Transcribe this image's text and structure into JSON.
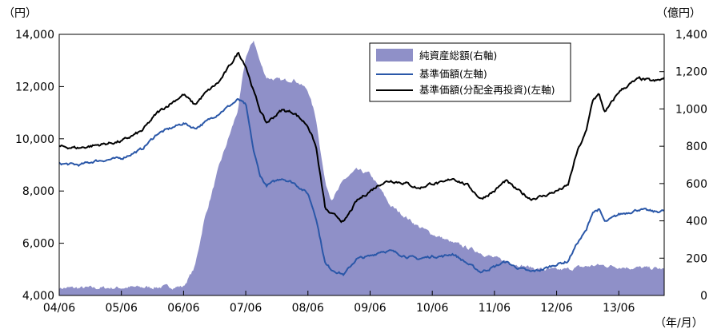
{
  "chart_data": {
    "type": "line",
    "units": {
      "left": "（円）",
      "right": "（億円）",
      "x": "（年/月）"
    },
    "left_axis": {
      "ylim": [
        4000,
        14000
      ],
      "ticks": [
        4000,
        6000,
        8000,
        10000,
        12000,
        14000
      ],
      "tick_labels": [
        "4,000",
        "6,000",
        "8,000",
        "10,000",
        "12,000",
        "14,000"
      ]
    },
    "right_axis": {
      "ylim": [
        0,
        1400
      ],
      "ticks": [
        0,
        200,
        400,
        600,
        800,
        1000,
        1200,
        1400
      ],
      "tick_labels": [
        "0",
        "200",
        "400",
        "600",
        "800",
        "1,000",
        "1,200",
        "1,400"
      ]
    },
    "categories": [
      "04/06",
      "05/06",
      "06/06",
      "07/06",
      "08/06",
      "09/06",
      "10/06",
      "11/06",
      "12/06",
      "13/06"
    ],
    "x": [
      2004.42,
      2004.75,
      2005.0,
      2005.42,
      2005.75,
      2006.0,
      2006.42,
      2006.6,
      2006.75,
      2007.0,
      2007.3,
      2007.42,
      2007.55,
      2007.65,
      2007.75,
      2008.0,
      2008.2,
      2008.42,
      2008.55,
      2008.7,
      2008.8,
      2008.9,
      2009.0,
      2009.2,
      2009.42,
      2009.6,
      2009.75,
      2010.0,
      2010.2,
      2010.42,
      2010.6,
      2010.75,
      2011.0,
      2011.2,
      2011.42,
      2011.6,
      2011.75,
      2012.0,
      2012.2,
      2012.42,
      2012.6,
      2012.75,
      2012.9,
      2013.0,
      2013.1,
      2013.2,
      2013.42,
      2013.6,
      2013.75,
      2014.0,
      2014.15
    ],
    "series": [
      {
        "name": "純資産総額(右軸)",
        "axis": "right",
        "color": "#8f90c8",
        "style": "area",
        "values": [
          40,
          40,
          40,
          42,
          44,
          45,
          48,
          150,
          400,
          700,
          1000,
          1280,
          1370,
          1250,
          1170,
          1150,
          1160,
          1100,
          950,
          600,
          520,
          560,
          620,
          670,
          650,
          560,
          480,
          420,
          370,
          330,
          305,
          280,
          255,
          230,
          200,
          185,
          170,
          150,
          140,
          135,
          140,
          150,
          155,
          160,
          162,
          160,
          155,
          150,
          148,
          145,
          140
        ]
      },
      {
        "name": "基準価額(左軸)",
        "axis": "left",
        "color": "#2a57a8",
        "style": "line",
        "values": [
          9050,
          9000,
          9150,
          9250,
          9600,
          10200,
          10600,
          10400,
          10600,
          11000,
          11500,
          11300,
          9500,
          8600,
          8200,
          8500,
          8300,
          7900,
          7000,
          5200,
          5000,
          4900,
          4800,
          5400,
          5500,
          5700,
          5700,
          5500,
          5400,
          5500,
          5500,
          5600,
          5200,
          4900,
          5100,
          5300,
          5100,
          4900,
          5000,
          5200,
          5300,
          6000,
          6500,
          7200,
          7300,
          6800,
          7100,
          7200,
          7300,
          7200,
          7250
        ]
      },
      {
        "name": "基準価額(分配金再投資)(左軸)",
        "axis": "left",
        "color": "#000000",
        "style": "line",
        "values": [
          9700,
          9650,
          9750,
          9900,
          10300,
          11000,
          11700,
          11300,
          11700,
          12200,
          13300,
          12800,
          11800,
          11100,
          10600,
          11100,
          11000,
          10500,
          9700,
          7300,
          7100,
          7000,
          6800,
          7600,
          8000,
          8300,
          8400,
          8300,
          8100,
          8300,
          8300,
          8500,
          8200,
          7700,
          8000,
          8400,
          8100,
          7700,
          7800,
          8000,
          8200,
          9500,
          10300,
          11500,
          11700,
          11000,
          11800,
          12100,
          12300,
          12200,
          12300
        ]
      }
    ],
    "legend": {
      "position": "top-right"
    },
    "grid": false
  }
}
